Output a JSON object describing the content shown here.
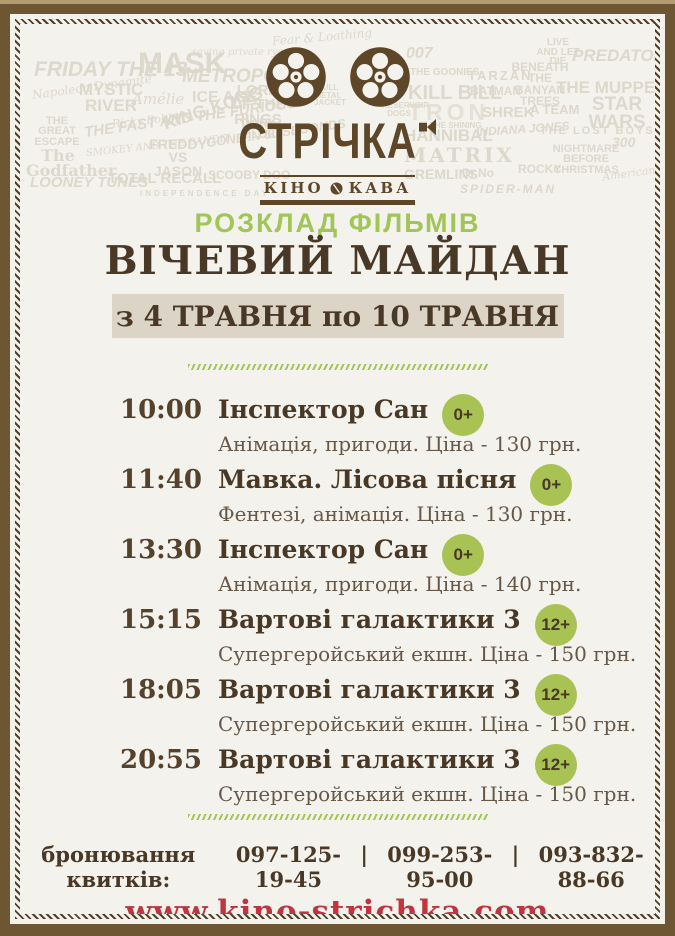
{
  "logo": {
    "name": "СТРІЧКА",
    "kino": "КІНО",
    "kava": "КАВА"
  },
  "headings": {
    "schedule_label": "РОЗКЛАД ФІЛЬМІВ",
    "venue_title": "ВІЧЕВИЙ МАЙДАН",
    "date_range": "з 4 ТРАВНЯ по 10 ТРАВНЯ"
  },
  "schedule": {
    "rows": [
      {
        "time": "10:00",
        "title": "Інспектор Сан",
        "rating": "0+",
        "description": "Анімація, пригоди. Ціна - 130 грн."
      },
      {
        "time": "11:40",
        "title": "Мавка. Лісова пісня",
        "rating": "0+",
        "description": "Фентезі, анімація. Ціна - 130 грн."
      },
      {
        "time": "13:30",
        "title": "Інспектор Сан",
        "rating": "0+",
        "description": "Анімація, пригоди. Ціна - 140 грн."
      },
      {
        "time": "15:15",
        "title": "Вартові галактики 3",
        "rating": "12+",
        "description": "Супергеройський екшн. Ціна - 150 грн."
      },
      {
        "time": "18:05",
        "title": "Вартові галактики 3",
        "rating": "12+",
        "description": "Супергеройський екшн. Ціна - 150 грн."
      },
      {
        "time": "20:55",
        "title": "Вартові галактики 3",
        "rating": "12+",
        "description": "Супергеройський екшн. Ціна - 150 грн."
      }
    ]
  },
  "footer": {
    "booking_label": "бронювання квитків:",
    "phones": [
      "097-125-19-45",
      "099-253-95-00",
      "093-832-88-66"
    ],
    "separator": "|",
    "website": "www.kino-strichka.com"
  },
  "watermark": {
    "titles": [
      "FRIDAY THE 13",
      "MASK",
      "saving private ryan",
      "METROPOLIS",
      "MYSTIC RIVER",
      "Napoleon Dynamite",
      "Amélie",
      "ICE AGE",
      "LORD OF THE RINGS",
      "Ricky Bobby",
      "THE GREAT ESCAPE",
      "THE FAST AND THE FURIOUS",
      "KING KONG",
      "DARK BLUE",
      "The Godfather",
      "SMOKEY AND THE BANDIT",
      "FREDDY VS JASON",
      "GONE IN 60 SECONDS",
      "TOTAL RECALL",
      "LOONEY TUNES",
      "SCOOBY DOO",
      "INDEPENDENCE DAY",
      "Fear & Loathing",
      "FULL METAL JACKET",
      "007",
      "THE GOONIES",
      "TARZAN",
      "BENEATH THE BANYAN TREES",
      "LIVE AND LET DIE",
      "PREDATOR",
      "KILL BILL",
      "THE MUPPETS",
      "BATMAN",
      "TRON",
      "SHREK",
      "A TEAM",
      "STAR WARS",
      "RESERVOIR DOGS",
      "THE SHINING",
      "HANNIBAL",
      "INDIANA JONES",
      "THE LOST BOYS",
      "MATRIX",
      "300",
      "GREMLINS",
      "Dr.No",
      "ROCKY",
      "NIGHTMARE BEFORE CHRISTMAS",
      "SPIDER-MAN",
      "American Beauty"
    ]
  },
  "colors": {
    "frame_brown": "#6f5633",
    "rope_brown": "#54402a",
    "text_brown": "#4a3826",
    "logo_brown": "#5d4728",
    "green": "#a2c557",
    "badge_green": "#a8c253",
    "banner_bg": "#dbd4c7",
    "paper": "#f4f2ec",
    "website_red": "#c23440"
  }
}
